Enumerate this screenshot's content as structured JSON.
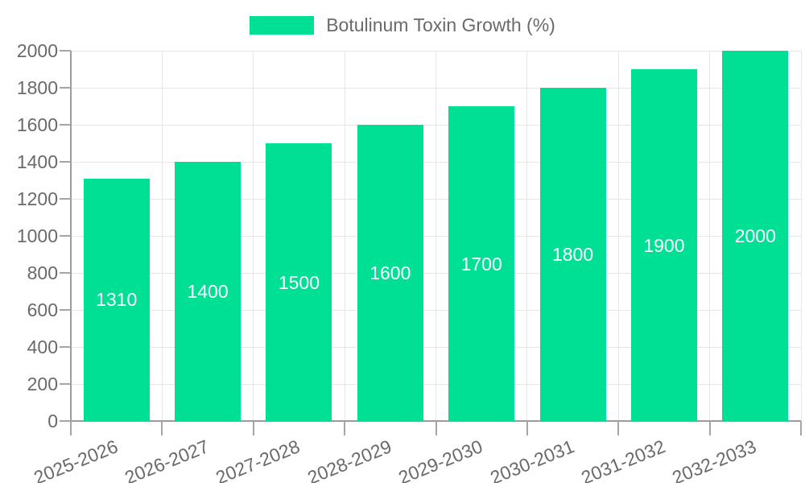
{
  "legend": {
    "position": "top",
    "label": "Botulinum Toxin Growth (%)"
  },
  "chart_data": {
    "type": "bar",
    "title": "Botulinum Toxin Growth (%)",
    "series_name": "Botulinum Toxin Growth (%)",
    "categories": [
      "2025-2026",
      "2026-2027",
      "2027-2028",
      "2028-2029",
      "2029-2030",
      "2030-2031",
      "2031-2032",
      "2032-2033"
    ],
    "values": [
      1310,
      1400,
      1500,
      1600,
      1700,
      1800,
      1900,
      2000
    ],
    "value_labels": [
      "1310",
      "1400",
      "1500",
      "1600",
      "1700",
      "1800",
      "1900",
      "2000"
    ],
    "xlabel": "",
    "ylabel": "",
    "ylim": [
      0,
      2000
    ],
    "yticks": [
      0,
      200,
      400,
      600,
      800,
      1000,
      1200,
      1400,
      1600,
      1800,
      2000
    ],
    "grid": true,
    "legend_position": "top",
    "x_label_rotation_deg": -22,
    "colors": {
      "bar": "#00E095",
      "bar_value_text": "#FFFFFF",
      "grid": "#E6E6E6",
      "axis_line": "#9B9B9B",
      "tick": "#A6A6A6",
      "label_text": "#6A6A6A"
    }
  }
}
